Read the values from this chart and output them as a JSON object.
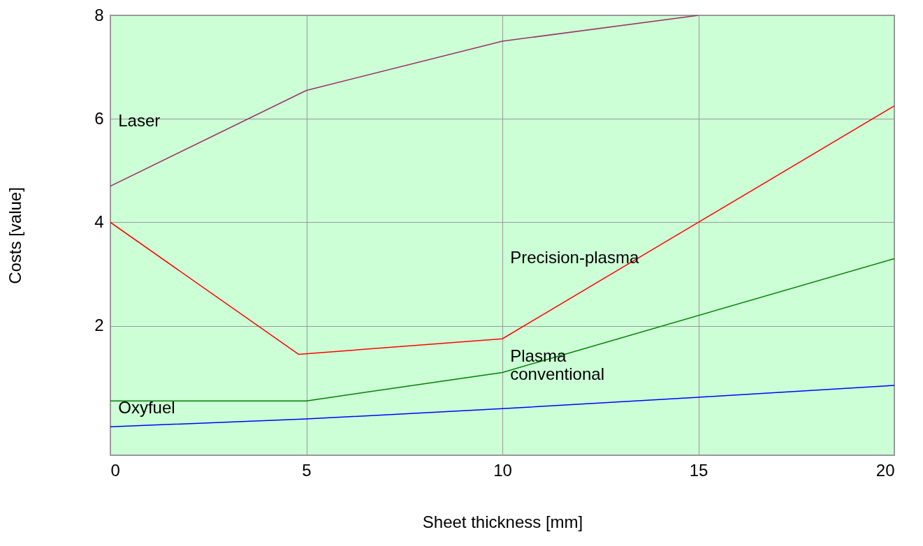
{
  "chart_data": {
    "type": "line",
    "xlabel": "Sheet thickness [mm]",
    "ylabel": "Costs [value]",
    "xlim": [
      0,
      20
    ],
    "xticks": [
      0,
      5,
      10,
      15,
      20
    ],
    "ylim": [
      -0.5,
      8
    ],
    "yticks": [
      2,
      4,
      6,
      8
    ],
    "grid": true,
    "marker": "none",
    "line_style": "solid",
    "series": [
      {
        "name": "Laser",
        "color": "#993366",
        "x": [
          0,
          5,
          10,
          15
        ],
        "values": [
          4.7,
          6.55,
          7.5,
          8.0
        ]
      },
      {
        "name": "Precision-plasma",
        "color": "#ff0000",
        "x": [
          0,
          4.8,
          10,
          15,
          20
        ],
        "values": [
          4.0,
          1.45,
          1.75,
          4.0,
          6.25
        ]
      },
      {
        "name": "Plasma conventional",
        "color": "#008000",
        "x": [
          0,
          5,
          10,
          20
        ],
        "values": [
          0.55,
          0.55,
          1.1,
          3.3
        ]
      },
      {
        "name": "Oxyfuel",
        "color": "#0000ff",
        "x": [
          0,
          5,
          10,
          15,
          20
        ],
        "values": [
          0.05,
          0.2,
          0.4,
          0.62,
          0.85
        ]
      }
    ]
  }
}
